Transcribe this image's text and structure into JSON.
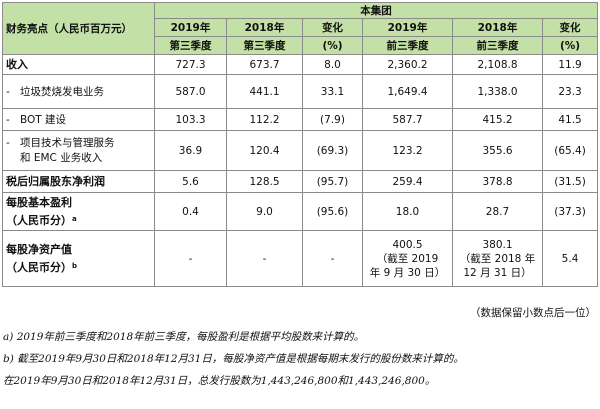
{
  "table": {
    "corner_label": "财务亮点（人民币百万元）",
    "group_label": "本集团",
    "columns": [
      {
        "line1": "2019年",
        "line2": "第三季度"
      },
      {
        "line1": "2018年",
        "line2": "第三季度"
      },
      {
        "line1": "变化",
        "line2": "(%)"
      },
      {
        "line1": "2019年",
        "line2": "前三季度"
      },
      {
        "line1": "2018年",
        "line2": "前三季度"
      },
      {
        "line1": "变化",
        "line2": "(%)"
      }
    ],
    "rows": [
      {
        "label": "收入",
        "values": [
          "727.3",
          "673.7",
          "8.0",
          "2,360.2",
          "2,108.8",
          "11.9"
        ]
      },
      {
        "label": "垃圾焚烧发电业务",
        "values": [
          "587.0",
          "441.1",
          "33.1",
          "1,649.4",
          "1,338.0",
          "23.3"
        ]
      },
      {
        "label": "BOT 建设",
        "values": [
          "103.3",
          "112.2",
          "(7.9)",
          "587.7",
          "415.2",
          "41.5"
        ]
      },
      {
        "label_line1": "项目技术与管理服务",
        "label_line2": "和 EMC 业务收入",
        "values": [
          "36.9",
          "120.4",
          "(69.3)",
          "123.2",
          "355.6",
          "(65.4)"
        ]
      },
      {
        "label": "税后归属股东净利润",
        "values": [
          "5.6",
          "128.5",
          "(95.7)",
          "259.4",
          "378.8",
          "(31.5)"
        ]
      },
      {
        "label_line1": "每股基本盈利",
        "label_line2": "（人民币分）",
        "note": "a",
        "values": [
          "0.4",
          "9.0",
          "(95.6)",
          "18.0",
          "28.7",
          "(37.3)"
        ]
      },
      {
        "label_line1": "每股净资产值",
        "label_line2": "（人民币分）",
        "note": "b",
        "values": [
          "-",
          "-",
          "-",
          "400.5",
          "380.1",
          "5.4"
        ],
        "notes": [
          "（截至 2019",
          "年 9 月 30 日）",
          "（截至 2018 年",
          "12 月 31 日）"
        ]
      }
    ],
    "dash": "-"
  },
  "rounding_note": "（数据保留小数点后一位）",
  "footnotes": [
    "a) 2019年前三季度和2018年前三季度，每股盈利是根据平均股数来计算的。",
    "b) 截至2019年9月30日和2018年12月31日，每股净资产值是根据每期末发行的股份数来计算的。",
    "在2019年9月30日和2018年12月31日，总发行股数为1,443,246,800和1,443,246,800。"
  ]
}
